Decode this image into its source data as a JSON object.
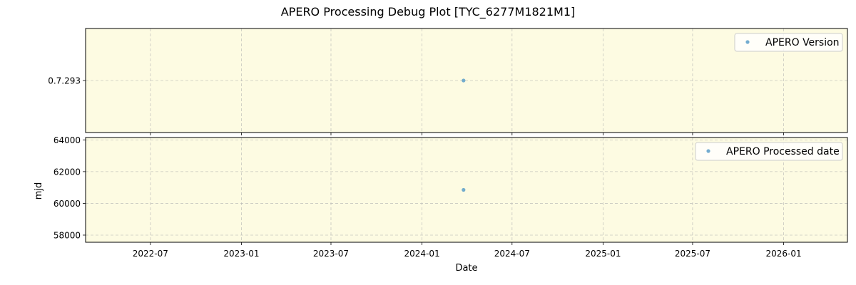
{
  "figure": {
    "title": "APERO Processing Debug Plot [TYC_6277M1821M1]"
  },
  "colors": {
    "panel_bg": "#fdfbe2",
    "grid": "#b0b0b0",
    "point": "#5b9ec9",
    "axis": "#000000"
  },
  "chart_data": [
    {
      "type": "scatter",
      "panel": "top",
      "ylabel": "",
      "xlabel": "",
      "y_tick_labels": [
        "0.7.293"
      ],
      "legend": {
        "label": "APERO Version",
        "placement": "top-right"
      },
      "grid": true,
      "series": [
        {
          "name": "APERO Version",
          "points": [
            {
              "x": "2024-03-25",
              "y": "0.7.293"
            }
          ]
        }
      ]
    },
    {
      "type": "scatter",
      "panel": "bottom",
      "xlabel": "Date",
      "ylabel": "mjd",
      "xlim": [
        "2022-02-20",
        "2026-05-10"
      ],
      "ylim": [
        57550,
        64150
      ],
      "x_ticks": [
        "2022-07",
        "2023-01",
        "2023-07",
        "2024-01",
        "2024-07",
        "2025-01",
        "2025-07",
        "2026-01"
      ],
      "y_ticks": [
        58000,
        60000,
        62000,
        64000
      ],
      "legend": {
        "label": "APERO Processed date",
        "placement": "top-right"
      },
      "grid": true,
      "series": [
        {
          "name": "APERO Processed date",
          "points": [
            {
              "x": "2024-03-25",
              "y": 60850
            }
          ]
        }
      ]
    }
  ]
}
